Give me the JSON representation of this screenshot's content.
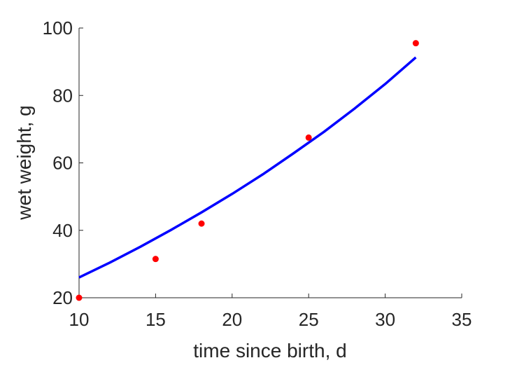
{
  "chart_data": {
    "type": "scatter",
    "xlabel": "time since birth, d",
    "ylabel": "wet weight, g",
    "xlim": [
      10,
      35
    ],
    "ylim": [
      20,
      100
    ],
    "xticks": [
      "10",
      "15",
      "20",
      "25",
      "30",
      "35"
    ],
    "yticks": [
      "20",
      "40",
      "60",
      "80",
      "100"
    ],
    "grid": false,
    "series": [
      {
        "kind": "scatter",
        "color": "#ff0000",
        "x": [
          10,
          15,
          18,
          25,
          32
        ],
        "y": [
          20,
          31.5,
          42,
          67.5,
          95.5
        ]
      },
      {
        "kind": "line",
        "color": "#0000ff",
        "x": [
          10,
          12,
          14,
          16,
          18,
          20,
          22,
          24,
          26,
          28,
          30,
          32
        ],
        "y": [
          26,
          30.4,
          35.1,
          40.1,
          45.3,
          50.8,
          56.6,
          62.8,
          69.2,
          76.1,
          83.4,
          91.3
        ]
      }
    ]
  }
}
